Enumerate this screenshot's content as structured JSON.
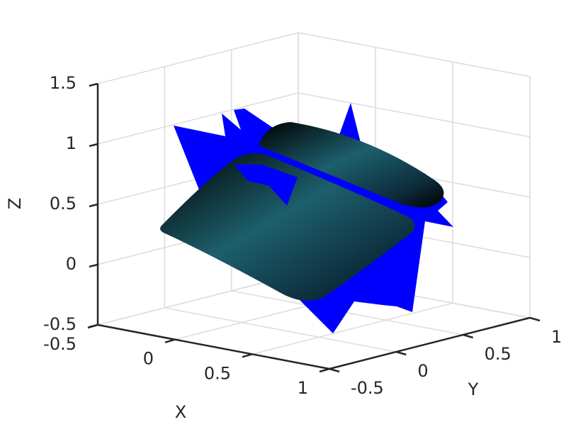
{
  "chart_data": {
    "type": "surface3d",
    "xlabel": "X",
    "ylabel": "Y",
    "zlabel": "Z",
    "xlim": [
      -0.5,
      1
    ],
    "xticks": [
      -0.5,
      0,
      0.5,
      1
    ],
    "ylim": [
      -0.5,
      1
    ],
    "yticks": [
      -0.5,
      0,
      0.5,
      1
    ],
    "zlim": [
      -0.5,
      1.5
    ],
    "zticks": [
      -0.5,
      0,
      0.5,
      1,
      1.5
    ],
    "grid": true
  }
}
